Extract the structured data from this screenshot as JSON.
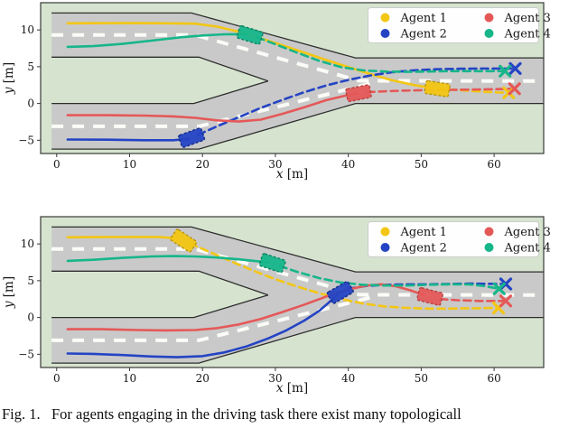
{
  "figure": {
    "caption": "Fig. 1.   For agents engaging in the driving task there exist many topologicall"
  },
  "palette": {
    "plot_bg": "#d6e4cf",
    "road_fill": "#c9c9c9",
    "road_edge": "#2e2e2e",
    "lane_marking": "#fbfbf8",
    "frame": "#3a3a3a",
    "tick_text": "#151515",
    "legend_border": "#cccccc",
    "legend_bg": "#ffffff",
    "agent1": "#f3c613",
    "agent2": "#2444c4",
    "agent3": "#e55858",
    "agent4": "#16b68a",
    "agent1_dark": "#b8940c",
    "agent2_dark": "#172e8a",
    "agent3_dark": "#b84040",
    "agent4_dark": "#0d8464"
  },
  "legend": {
    "position": "upper right",
    "items": [
      {
        "label": "Agent 1",
        "color_key": "agent1"
      },
      {
        "label": "Agent 2",
        "color_key": "agent2"
      },
      {
        "label": "Agent 3",
        "color_key": "agent3"
      },
      {
        "label": "Agent 4",
        "color_key": "agent4"
      }
    ]
  },
  "axes": {
    "xlabel_var": "x",
    "xlabel_unit": " [m]",
    "ylabel_var": "y",
    "ylabel_unit": " [m]",
    "xticks": [
      0,
      10,
      20,
      30,
      40,
      50,
      60
    ],
    "yticks": [
      10,
      5,
      0,
      -5
    ],
    "xlim": [
      -2.2,
      66.8
    ],
    "ylim": [
      -6.8,
      13.7
    ],
    "grid": false
  },
  "chart_data": {
    "type": "trajectory",
    "description": "Two subplots of a lane-merge driving scene; solid = past path, dashed = predicted future, rectangle = current vehicle pose, X = trajectory endpoint.",
    "road": {
      "surface": [
        [
          -0.7,
          12.3
        ],
        [
          18.5,
          12.3
        ],
        [
          41,
          6.2
        ],
        [
          66.8,
          6.2
        ],
        [
          66.8,
          0
        ],
        [
          41,
          0
        ],
        [
          19.5,
          -6.2
        ],
        [
          -0.7,
          -6.2
        ],
        [
          -0.7,
          0
        ],
        [
          18.8,
          0
        ],
        [
          29,
          3.05
        ],
        [
          19.5,
          6.3
        ],
        [
          -0.7,
          6.3
        ]
      ],
      "boundaries": [
        [
          [
            -0.7,
            12.3
          ],
          [
            18.5,
            12.3
          ],
          [
            41,
            6.2
          ],
          [
            66.8,
            6.2
          ]
        ],
        [
          [
            -0.7,
            -6.2
          ],
          [
            19.5,
            -6.2
          ],
          [
            41,
            0
          ],
          [
            66.8,
            0
          ]
        ],
        [
          [
            -0.7,
            6.3
          ],
          [
            19.5,
            6.3
          ],
          [
            29,
            3.05
          ]
        ],
        [
          [
            -0.7,
            0
          ],
          [
            18.8,
            0
          ],
          [
            29,
            3.05
          ]
        ]
      ],
      "lane_lines": [
        [
          [
            -0.7,
            9.3
          ],
          [
            19,
            9.3
          ],
          [
            41.5,
            3.1
          ],
          [
            66.3,
            3.05
          ]
        ],
        [
          [
            -0.7,
            -3.1
          ],
          [
            19.5,
            -3.1
          ],
          [
            43,
            2.7
          ]
        ]
      ]
    },
    "subplots": [
      {
        "name": "top",
        "agents": [
          {
            "name": "Agent 1",
            "color_key": "agent1",
            "past": [
              [
                1.5,
                10.9
              ],
              [
                9,
                10.92
              ],
              [
                15,
                10.9
              ],
              [
                19,
                10.85
              ],
              [
                22,
                10.45
              ],
              [
                25,
                9.75
              ],
              [
                28,
                8.85
              ],
              [
                31,
                7.9
              ],
              [
                34,
                6.9
              ],
              [
                37,
                5.9
              ],
              [
                40,
                4.95
              ],
              [
                43,
                4.0
              ],
              [
                46,
                3.15
              ],
              [
                49,
                2.5
              ],
              [
                51.5,
                2.1
              ]
            ],
            "vehicle": {
              "x": 52.2,
              "y": 2.0,
              "heading_deg": -9
            },
            "future": [
              [
                52.2,
                2.0
              ],
              [
                55.5,
                1.8
              ],
              [
                58.5,
                1.6
              ],
              [
                62,
                1.45
              ]
            ],
            "end_marker": [
              62,
              1.45
            ]
          },
          {
            "name": "Agent 2",
            "color_key": "agent2",
            "past": [
              [
                1.5,
                -4.9
              ],
              [
                7,
                -4.92
              ],
              [
                12,
                -5.0
              ],
              [
                16,
                -5.0
              ],
              [
                18.2,
                -4.8
              ]
            ],
            "vehicle": {
              "x": 18.5,
              "y": -4.65,
              "heading_deg": 20
            },
            "future": [
              [
                19.4,
                -4.25
              ],
              [
                22,
                -3.1
              ],
              [
                25,
                -1.85
              ],
              [
                28,
                -0.6
              ],
              [
                31,
                0.5
              ],
              [
                34,
                1.55
              ],
              [
                37,
                2.45
              ],
              [
                40,
                3.2
              ],
              [
                43,
                3.8
              ],
              [
                46,
                4.25
              ],
              [
                49,
                4.5
              ],
              [
                52,
                4.65
              ],
              [
                55,
                4.72
              ],
              [
                58,
                4.75
              ],
              [
                62.9,
                4.75
              ]
            ],
            "end_marker": [
              62.9,
              4.75
            ]
          },
          {
            "name": "Agent 3",
            "color_key": "agent3",
            "past": [
              [
                1.5,
                -1.6
              ],
              [
                7,
                -1.6
              ],
              [
                12,
                -1.65
              ],
              [
                16,
                -1.75
              ],
              [
                19,
                -1.95
              ],
              [
                22,
                -2.3
              ],
              [
                25,
                -2.45
              ],
              [
                28,
                -2.2
              ],
              [
                31,
                -1.4
              ],
              [
                34,
                -0.5
              ],
              [
                37,
                0.45
              ],
              [
                39.5,
                1.05
              ],
              [
                41.2,
                1.35
              ]
            ],
            "vehicle": {
              "x": 41.4,
              "y": 1.4,
              "heading_deg": 11
            },
            "future": [
              [
                42.6,
                1.55
              ],
              [
                46,
                1.7
              ],
              [
                50,
                1.8
              ],
              [
                54,
                1.85
              ],
              [
                58,
                1.9
              ],
              [
                62.8,
                2.0
              ]
            ],
            "end_marker": [
              62.8,
              2.0
            ]
          },
          {
            "name": "Agent 4",
            "color_key": "agent4",
            "past": [
              [
                1.5,
                7.7
              ],
              [
                5,
                7.8
              ],
              [
                9,
                8.1
              ],
              [
                13,
                8.55
              ],
              [
                17,
                9.0
              ],
              [
                20,
                9.25
              ],
              [
                23,
                9.4
              ],
              [
                26,
                9.42
              ]
            ],
            "vehicle": {
              "x": 26.5,
              "y": 9.3,
              "heading_deg": -17
            },
            "future": [
              [
                27.5,
                9.0
              ],
              [
                30,
                8.05
              ],
              [
                33,
                6.9
              ],
              [
                36,
                5.8
              ],
              [
                39,
                4.95
              ],
              [
                42,
                4.5
              ],
              [
                45,
                4.35
              ],
              [
                48,
                4.3
              ],
              [
                51,
                4.35
              ],
              [
                54,
                4.4
              ],
              [
                57,
                4.4
              ],
              [
                61.5,
                4.4
              ]
            ],
            "end_marker": [
              61.5,
              4.4
            ]
          }
        ]
      },
      {
        "name": "bottom",
        "agents": [
          {
            "name": "Agent 1",
            "color_key": "agent1",
            "past": [
              [
                1.5,
                10.9
              ],
              [
                6,
                10.92
              ],
              [
                10,
                10.95
              ],
              [
                14,
                10.92
              ],
              [
                16.8,
                10.75
              ]
            ],
            "vehicle": {
              "x": 17.4,
              "y": 10.45,
              "heading_deg": -33
            },
            "future": [
              [
                18.3,
                10.05
              ],
              [
                21,
                8.9
              ],
              [
                24,
                7.6
              ],
              [
                27,
                6.35
              ],
              [
                30,
                5.2
              ],
              [
                33,
                4.2
              ],
              [
                36,
                3.3
              ],
              [
                39,
                2.5
              ],
              [
                42,
                1.9
              ],
              [
                45,
                1.5
              ],
              [
                48,
                1.3
              ],
              [
                51,
                1.2
              ],
              [
                54,
                1.2
              ],
              [
                57,
                1.25
              ],
              [
                60.6,
                1.3
              ]
            ],
            "end_marker": [
              60.6,
              1.3
            ]
          },
          {
            "name": "Agent 2",
            "color_key": "agent2",
            "past": [
              [
                1.5,
                -4.9
              ],
              [
                5,
                -4.95
              ],
              [
                9,
                -5.1
              ],
              [
                13,
                -5.3
              ],
              [
                16.5,
                -5.4
              ],
              [
                20,
                -5.25
              ],
              [
                23,
                -4.75
              ],
              [
                26,
                -3.95
              ],
              [
                29,
                -2.85
              ],
              [
                31.5,
                -1.75
              ],
              [
                34,
                -0.4
              ],
              [
                36,
                0.9
              ],
              [
                38,
                2.6
              ],
              [
                38.6,
                3.1
              ]
            ],
            "vehicle": {
              "x": 38.9,
              "y": 3.4,
              "heading_deg": 30
            },
            "future": [
              [
                40,
                3.9
              ],
              [
                42.5,
                4.3
              ],
              [
                45,
                4.45
              ],
              [
                48,
                4.5
              ],
              [
                51,
                4.5
              ],
              [
                54,
                4.55
              ],
              [
                57,
                4.6
              ],
              [
                61.6,
                4.55
              ]
            ],
            "end_marker": [
              61.6,
              4.55
            ]
          },
          {
            "name": "Agent 3",
            "color_key": "agent3",
            "past": [
              [
                1.5,
                -1.6
              ],
              [
                6,
                -1.6
              ],
              [
                11,
                -1.7
              ],
              [
                15,
                -1.75
              ],
              [
                19,
                -1.7
              ],
              [
                22,
                -1.45
              ],
              [
                25,
                -0.95
              ],
              [
                28,
                -0.2
              ],
              [
                31,
                0.75
              ],
              [
                34,
                1.75
              ],
              [
                37,
                2.85
              ],
              [
                40,
                3.8
              ],
              [
                42.5,
                4.35
              ],
              [
                44.5,
                4.5
              ],
              [
                46.5,
                4.25
              ],
              [
                48.5,
                3.7
              ],
              [
                50.5,
                3.0
              ]
            ],
            "vehicle": {
              "x": 51.2,
              "y": 2.85,
              "heading_deg": -14
            },
            "future": [
              [
                52.6,
                2.5
              ],
              [
                55,
                2.35
              ],
              [
                58,
                2.25
              ],
              [
                61.6,
                2.25
              ]
            ],
            "end_marker": [
              61.6,
              2.25
            ]
          },
          {
            "name": "Agent 4",
            "color_key": "agent4",
            "past": [
              [
                1.5,
                7.7
              ],
              [
                5,
                7.85
              ],
              [
                9,
                8.1
              ],
              [
                13,
                8.3
              ],
              [
                16,
                8.35
              ],
              [
                19,
                8.3
              ],
              [
                22,
                8.15
              ],
              [
                25,
                7.9
              ],
              [
                27.5,
                7.65
              ],
              [
                29,
                7.5
              ]
            ],
            "vehicle": {
              "x": 29.6,
              "y": 7.4,
              "heading_deg": -18
            },
            "future": [
              [
                30.6,
                7.0
              ],
              [
                33,
                6.2
              ],
              [
                36,
                5.35
              ],
              [
                39,
                4.75
              ],
              [
                42,
                4.45
              ],
              [
                45,
                4.35
              ],
              [
                48,
                4.35
              ],
              [
                51,
                4.45
              ],
              [
                54,
                4.5
              ],
              [
                56.5,
                4.5
              ],
              [
                58.5,
                4.3
              ],
              [
                60.7,
                3.9
              ]
            ],
            "end_marker": [
              60.7,
              3.9
            ]
          }
        ]
      }
    ]
  }
}
